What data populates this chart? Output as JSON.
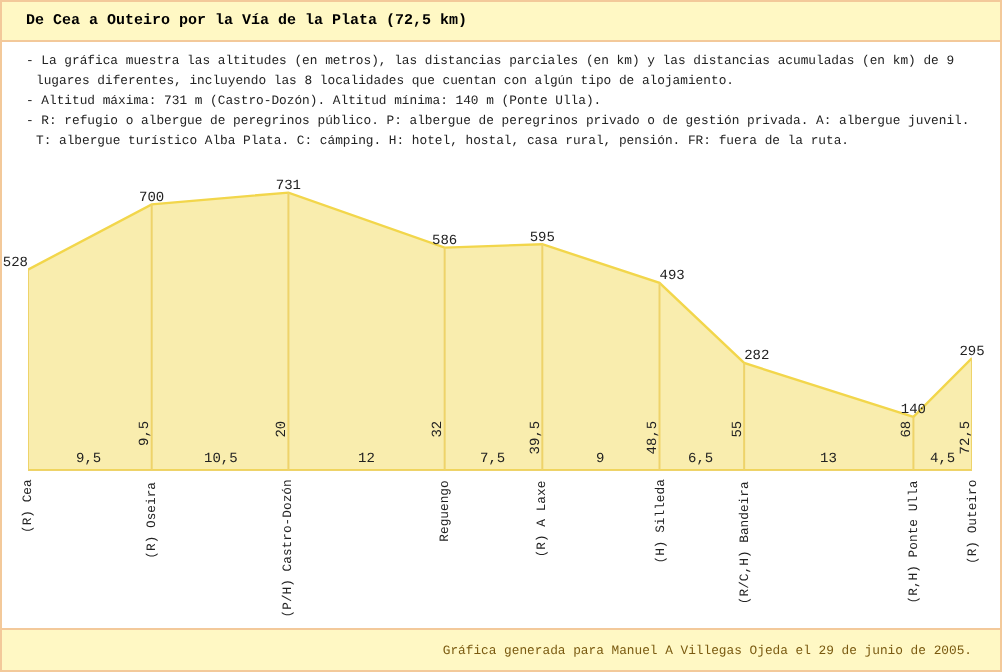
{
  "chart_data": {
    "type": "area",
    "title": "De Cea a Outeiro por la Vía de la Plata (72,5 km)",
    "x": [
      0,
      9.5,
      20,
      32,
      39.5,
      48.5,
      55,
      68,
      72.5
    ],
    "series": [
      {
        "color": "#f2d64b",
        "values": [
          528,
          700,
          731,
          586,
          595,
          493,
          282,
          140,
          295
        ]
      }
    ],
    "data_labels": true,
    "xlim": [
      0,
      72.5
    ],
    "xticks": [
      {
        "value": 9.5,
        "label": "9,5"
      },
      20,
      32,
      {
        "value": 39.5,
        "label": "39,5"
      },
      {
        "value": 48.5,
        "label": "48,5"
      },
      55,
      68,
      {
        "value": 72.5,
        "label": "72,5"
      }
    ],
    "tick_labels": "x",
    "grid": "x",
    "annotations": [
      "- La gráfica muestra las altitudes (en metros), las distancias parciales (en km) y las distancias acumuladas (en km) de 9 lugares diferentes, incluyendo las 8 localidades que cuentan con algún tipo de alojamiento.",
      "- Altitud máxima: 731 m (Castro-Dozón).  Altitud mínima: 140 m (Ponte Ulla).",
      "- R: refugio o albergue de peregrinos público.  P: albergue de peregrinos privado o de gestión privada.  A: albergue juvenil. T: albergue turístico Alba Plata.  C: cámping.  H: hotel, hostal, casa rural, pensión.  FR: fuera de la ruta.",
      "Gráfica generada para Manuel A Villegas Ojeda el 29 de junio de 2005.",
      "9,5",
      "10,5",
      "12",
      "7,5",
      "9",
      "6,5",
      "13",
      "4,5",
      "(R) Cea",
      "(R) Oseira",
      "(P/H) Castro-Dozón",
      "Reguengo",
      "(R) A Laxe",
      "(H) Silleda",
      "(R/C,H) Bandeira",
      "(R,H) Ponte Ulla",
      "(R) Outeiro"
    ]
  }
}
